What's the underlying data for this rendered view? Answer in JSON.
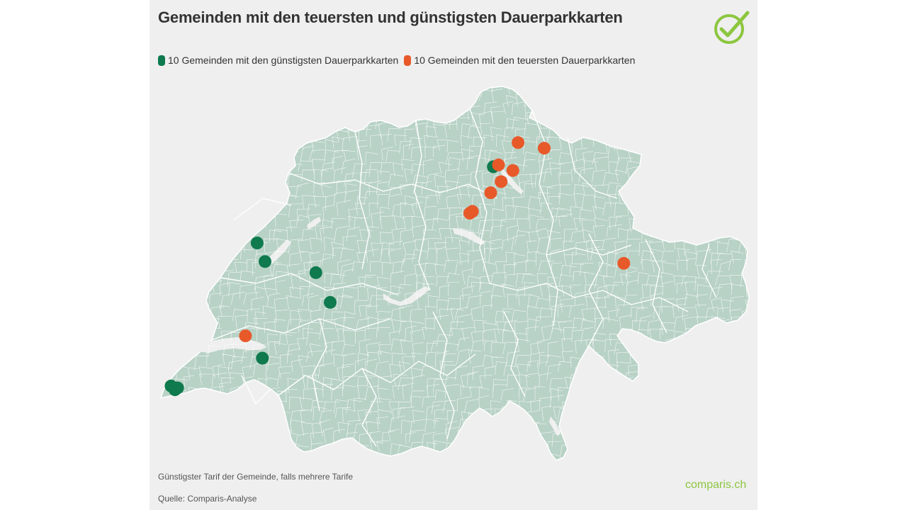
{
  "title": "Gemeinden mit den teuersten und günstigsten Dauerparkkarten",
  "legend": {
    "cheap_label": "10 Gemeinden mit den günstigsten Dauerparkkarten",
    "expensive_label": "10 Gemeinden mit den teuersten Dauerparkkarten"
  },
  "footer": {
    "note": "Günstigster Tarif der Gemeinde, falls mehrere Tarife",
    "source": "Quelle: Comparis-Analyse",
    "brand": "comparis.ch"
  },
  "colors": {
    "cheap": "#0e7a4e",
    "expensive": "#e8592a",
    "land": "#b8d2c6",
    "border": "#ffffff",
    "brand": "#8cc63f"
  },
  "icons": {
    "logo": "checkmark-circle-icon"
  },
  "map_data": {
    "region": "Switzerland",
    "cheap_points": [
      {
        "lat": 46.96,
        "lon": 6.72
      },
      {
        "lat": 46.86,
        "lon": 6.78
      },
      {
        "lat": 46.8,
        "lon": 7.17
      },
      {
        "lat": 46.64,
        "lon": 7.28
      },
      {
        "lat": 46.34,
        "lon": 6.76
      },
      {
        "lat": 46.19,
        "lon": 6.06
      },
      {
        "lat": 46.17,
        "lon": 6.09
      },
      {
        "lat": 46.18,
        "lon": 6.1
      },
      {
        "lat": 46.18,
        "lon": 6.11
      },
      {
        "lat": 47.37,
        "lon": 8.53
      }
    ],
    "expensive_points": [
      {
        "lat": 47.5,
        "lon": 8.72
      },
      {
        "lat": 47.47,
        "lon": 8.92
      },
      {
        "lat": 47.38,
        "lon": 8.57
      },
      {
        "lat": 47.35,
        "lon": 8.68
      },
      {
        "lat": 47.29,
        "lon": 8.59
      },
      {
        "lat": 47.23,
        "lon": 8.51
      },
      {
        "lat": 47.13,
        "lon": 8.37
      },
      {
        "lat": 47.12,
        "lon": 8.35
      },
      {
        "lat": 46.85,
        "lon": 9.53
      },
      {
        "lat": 46.46,
        "lon": 6.63
      }
    ]
  }
}
